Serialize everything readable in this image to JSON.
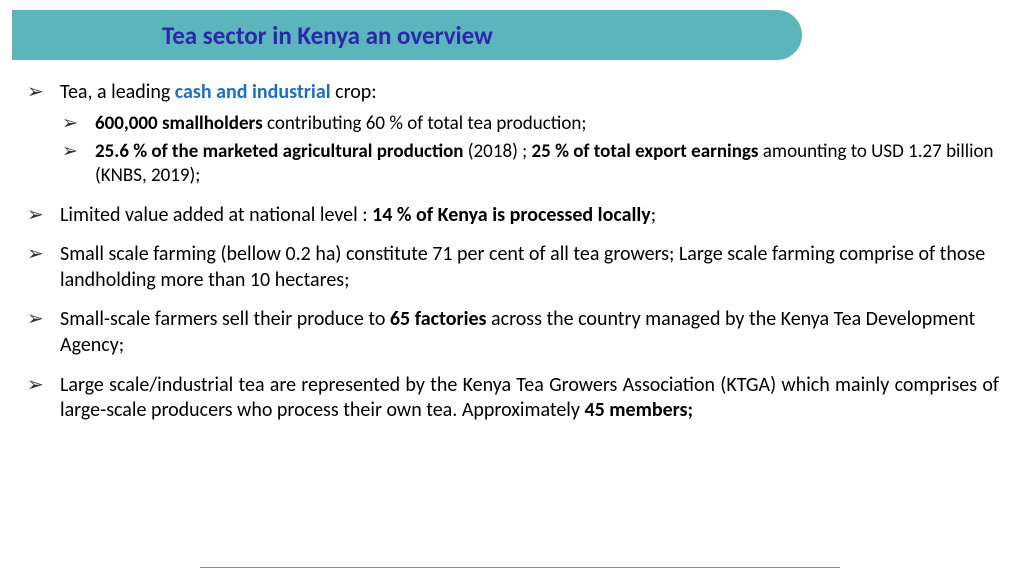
{
  "colors": {
    "title_bar_bg": "#5cb4bd",
    "title_text": "#2a2aa8",
    "highlight_blue": "#1f6fc0",
    "body_text": "#000000",
    "bullet": "#333333",
    "background": "#ffffff"
  },
  "typography": {
    "title_fontsize": 25,
    "body_fontsize": 20,
    "sub_fontsize": 19,
    "font_family": "Calibri"
  },
  "title": "Tea sector in Kenya  an overview",
  "b1_pre": "Tea, a leading ",
  "b1_hl": "cash and industrial",
  "b1_post": " crop:",
  "b1a_bold": "600,000 smallholders",
  "b1a_rest": " contributing 60 % of total tea production;",
  "b1b_bold1": "25.6 % of the marketed agricultural production",
  "b1b_mid": " (2018) ; ",
  "b1b_bold2": "25 % of total export earnings",
  "b1b_rest": " amounting to USD 1.27 billion (KNBS, 2019);",
  "b2_pre": "Limited value added at national level : ",
  "b2_bold": "14 % of Kenya is processed locally",
  "b2_post": ";",
  "b3": "Small scale farming (bellow 0.2 ha)  constitute 71 per cent of all tea growers; Large scale farming comprise of those landholding  more than 10 hectares;",
  "b4_pre": "Small-scale farmers sell their produce to ",
  "b4_bold": "65 factories",
  "b4_post": " across the country managed by the Kenya Tea Development Agency;",
  "b5_pre": "Large scale/industrial tea are represented by the Kenya Tea Growers Association (KTGA) which mainly comprises of large-scale producers who process their own tea. Approximately ",
  "b5_bold": "45 members;"
}
